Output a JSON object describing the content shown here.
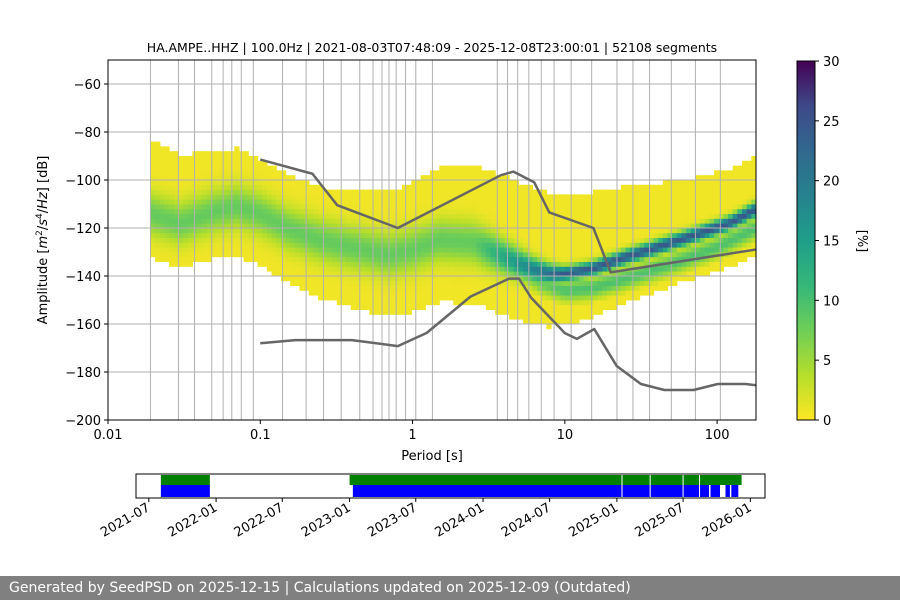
{
  "chart_data": [
    {
      "type": "heatmap",
      "title": "HA.AMPE..HHZ | 100.0Hz | 2021-08-03T07:48:09 - 2025-12-08T23:00:01 | 52108 segments",
      "xlabel": "Period [s]",
      "ylabel": "Amplitude [m²/s⁴/Hz] [dB]",
      "x_scale": "log",
      "xlim": [
        0.01,
        180
      ],
      "ylim": [
        -200,
        -50
      ],
      "x_ticks": [
        0.01,
        0.1,
        1,
        10,
        100
      ],
      "x_tick_labels": [
        "0.01",
        "0.1",
        "1",
        "10",
        "100"
      ],
      "y_ticks": [
        -200,
        -180,
        -160,
        -140,
        -120,
        -100,
        -80,
        -60
      ],
      "y_tick_labels": [
        "−200",
        "−180",
        "−160",
        "−140",
        "−120",
        "−100",
        "−80",
        "−60"
      ],
      "grid": true,
      "colorbar": {
        "label": "[%]",
        "min": 0,
        "max": 30,
        "ticks": [
          0,
          5,
          10,
          15,
          20,
          25,
          30
        ],
        "tick_labels": [
          "0",
          "5",
          "10",
          "15",
          "20",
          "25",
          "30"
        ],
        "colormap": "viridis_r"
      },
      "mode_curve": {
        "period": [
          0.019,
          0.03,
          0.05,
          0.07,
          0.1,
          0.15,
          0.25,
          0.4,
          0.7,
          1.0,
          1.5,
          2.5,
          4,
          6,
          8,
          10,
          15,
          25,
          40,
          70,
          120,
          180
        ],
        "db": [
          -114,
          -118,
          -113,
          -111,
          -114,
          -120,
          -125,
          -128,
          -131,
          -129,
          -125,
          -126,
          -132,
          -137,
          -139,
          -139,
          -137,
          -132,
          -128,
          -123,
          -118,
          -112
        ]
      },
      "secondary_curve": {
        "period": [
          5,
          7,
          10,
          15,
          25,
          50,
          100,
          180
        ],
        "db": [
          -138,
          -143,
          -146,
          -145,
          -141,
          -135,
          -128,
          -120
        ]
      },
      "noise_models": [
        {
          "name": "NHNM",
          "period": [
            0.1,
            0.22,
            0.32,
            0.8,
            3.8,
            4.6,
            6.3,
            7.9,
            15.4,
            20,
            354.8
          ],
          "db": [
            -91.5,
            -97.4,
            -110.5,
            -120,
            -98,
            -96.5,
            -101,
            -113.5,
            -120,
            -138.5,
            -126
          ]
        },
        {
          "name": "NLNM",
          "period": [
            0.1,
            0.17,
            0.4,
            0.8,
            1.24,
            2.4,
            4.3,
            5.0,
            6.0,
            10.0,
            12.0,
            15.6,
            21.9,
            31.6,
            45,
            70,
            101,
            154,
            328,
            600
          ],
          "db": [
            -168,
            -166.7,
            -166.7,
            -169.2,
            -163.7,
            -148.6,
            -141.1,
            -141.1,
            -149,
            -163.8,
            -166.2,
            -162.1,
            -177.5,
            -185,
            -187.5,
            -187.5,
            -185,
            -185,
            -187.5,
            -184.4
          ]
        }
      ],
      "vertical_lines_period": [
        0.019,
        0.029,
        0.037,
        0.048,
        0.057,
        0.065,
        0.075,
        0.09,
        0.14,
        0.2,
        0.26,
        0.34,
        0.45,
        0.55,
        0.63,
        0.7,
        0.78,
        0.9,
        1.05,
        1.35,
        3.6,
        4.2,
        4.9,
        5.8,
        7.0,
        8.5,
        11,
        15,
        22,
        28,
        36,
        50,
        72,
        105
      ],
      "color_scale_note": ""
    },
    {
      "type": "timeline",
      "x_ticks": [
        "2021-07",
        "2022-01",
        "2022-07",
        "2023-01",
        "2023-07",
        "2024-01",
        "2024-07",
        "2025-01",
        "2025-07",
        "2026-01"
      ],
      "xlim": [
        "2021-05-27",
        "2026-02-10"
      ],
      "green_segments": [
        [
          "2021-08-03",
          "2021-12-15"
        ],
        [
          "2023-01-01",
          "2025-12-08"
        ]
      ],
      "blue_segments": [
        [
          "2021-08-03",
          "2021-12-15"
        ],
        [
          "2023-01-10",
          "2025-09-10"
        ],
        [
          "2025-09-14",
          "2025-10-10"
        ],
        [
          "2025-10-25",
          "2025-11-06"
        ],
        [
          "2025-11-10",
          "2025-11-29"
        ]
      ],
      "gaps": [
        "2025-01-15",
        "2025-04-02",
        "2025-07-01",
        "2025-08-15"
      ],
      "colors": {
        "green": "#008000",
        "blue": "#0000ff"
      }
    }
  ],
  "footer": {
    "text": "Generated by SeedPSD on 2025-12-15 | Calculations updated on 2025-12-09 (Outdated)"
  },
  "colors": {
    "curve": "#666666",
    "grid": "#b0b0b0",
    "footer_bg": "#808080"
  }
}
